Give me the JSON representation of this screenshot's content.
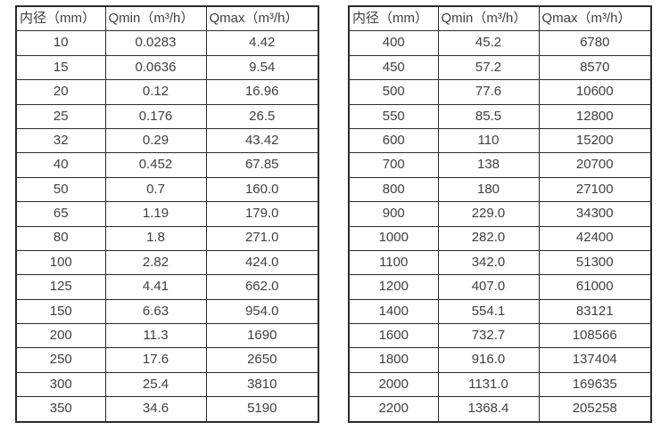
{
  "colors": {
    "background": "#ffffff",
    "border": "#2b2b2b",
    "text": "#3f3f3f"
  },
  "header": {
    "columns": [
      "内径（mm）",
      "Qmin（m³/h）",
      "Qmax（m³/h）"
    ]
  },
  "tables": [
    {
      "name": "small-diameter-flow-table",
      "rows": [
        [
          "10",
          "0.0283",
          "4.42"
        ],
        [
          "15",
          "0.0636",
          "9.54"
        ],
        [
          "20",
          "0.12",
          "16.96"
        ],
        [
          "25",
          "0.176",
          "26.5"
        ],
        [
          "32",
          "0.29",
          "43.42"
        ],
        [
          "40",
          "0.452",
          "67.85"
        ],
        [
          "50",
          "0.7",
          "160.0"
        ],
        [
          "65",
          "1.19",
          "179.0"
        ],
        [
          "80",
          "1.8",
          "271.0"
        ],
        [
          "100",
          "2.82",
          "424.0"
        ],
        [
          "125",
          "4.41",
          "662.0"
        ],
        [
          "150",
          "6.63",
          "954.0"
        ],
        [
          "200",
          "11.3",
          "1690"
        ],
        [
          "250",
          "17.6",
          "2650"
        ],
        [
          "300",
          "25.4",
          "3810"
        ],
        [
          "350",
          "34.6",
          "5190"
        ]
      ]
    },
    {
      "name": "large-diameter-flow-table",
      "rows": [
        [
          "400",
          "45.2",
          "6780"
        ],
        [
          "450",
          "57.2",
          "8570"
        ],
        [
          "500",
          "77.6",
          "10600"
        ],
        [
          "550",
          "85.5",
          "12800"
        ],
        [
          "600",
          "110",
          "15200"
        ],
        [
          "700",
          "138",
          "20700"
        ],
        [
          "800",
          "180",
          "27100"
        ],
        [
          "900",
          "229.0",
          "34300"
        ],
        [
          "1000",
          "282.0",
          "42400"
        ],
        [
          "1100",
          "342.0",
          "51300"
        ],
        [
          "1200",
          "407.0",
          "61000"
        ],
        [
          "1400",
          "554.1",
          "83121"
        ],
        [
          "1600",
          "732.7",
          "108566"
        ],
        [
          "1800",
          "916.0",
          "137404"
        ],
        [
          "2000",
          "1131.0",
          "169635"
        ],
        [
          "2200",
          "1368.4",
          "205258"
        ]
      ]
    }
  ]
}
